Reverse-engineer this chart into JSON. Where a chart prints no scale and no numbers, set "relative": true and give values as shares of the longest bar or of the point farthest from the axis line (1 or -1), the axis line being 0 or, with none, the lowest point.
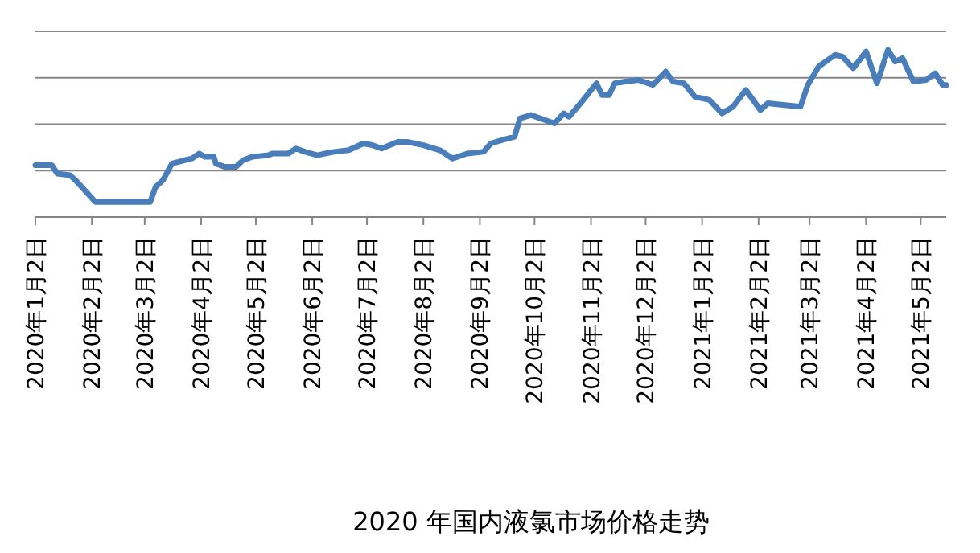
{
  "chart_data": {
    "type": "line",
    "title": "2020 年国内液氯市场价格走势",
    "relative": true,
    "grid": "y",
    "color": "#4a7ebb",
    "xlim": [
      "2020-01-02",
      "2021-05-16"
    ],
    "xticks": [
      {
        "value": "2020-01-02",
        "label": "2020年1月2日"
      },
      {
        "value": "2020-02-02",
        "label": "2020年2月2日"
      },
      {
        "value": "2020-03-02",
        "label": "2020年3月2日"
      },
      {
        "value": "2020-04-02",
        "label": "2020年4月2日"
      },
      {
        "value": "2020-05-02",
        "label": "2020年5月2日"
      },
      {
        "value": "2020-06-02",
        "label": "2020年6月2日"
      },
      {
        "value": "2020-07-02",
        "label": "2020年7月2日"
      },
      {
        "value": "2020-08-02",
        "label": "2020年8月2日"
      },
      {
        "value": "2020-09-02",
        "label": "2020年9月2日"
      },
      {
        "value": "2020-10-02",
        "label": "2020年10月2日"
      },
      {
        "value": "2020-11-02",
        "label": "2020年11月2日"
      },
      {
        "value": "2020-12-02",
        "label": "2020年12月2日"
      },
      {
        "value": "2021-01-02",
        "label": "2021年1月2日"
      },
      {
        "value": "2021-02-02",
        "label": "2021年2月2日"
      },
      {
        "value": "2021-03-02",
        "label": "2021年3月2日"
      },
      {
        "value": "2021-04-02",
        "label": "2021年4月2日"
      },
      {
        "value": "2021-05-02",
        "label": "2021年5月2日"
      }
    ],
    "x": [
      "2020-01-02",
      "2020-01-11",
      "2020-01-14",
      "2020-01-21",
      "2020-01-24",
      "2020-02-04",
      "2020-03-05",
      "2020-03-08",
      "2020-03-12",
      "2020-03-17",
      "2020-03-24",
      "2020-03-28",
      "2020-04-01",
      "2020-04-04",
      "2020-04-09",
      "2020-04-10",
      "2020-04-15",
      "2020-04-21",
      "2020-04-25",
      "2020-04-30",
      "2020-05-09",
      "2020-05-11",
      "2020-05-20",
      "2020-05-24",
      "2020-05-29",
      "2020-06-05",
      "2020-06-09",
      "2020-06-14",
      "2020-06-22",
      "2020-06-30",
      "2020-07-05",
      "2020-07-10",
      "2020-07-19",
      "2020-07-24",
      "2020-08-02",
      "2020-08-11",
      "2020-08-18",
      "2020-08-26",
      "2020-09-04",
      "2020-09-08",
      "2020-09-14",
      "2020-09-21",
      "2020-09-24",
      "2020-09-30",
      "2020-10-13",
      "2020-10-18",
      "2020-10-21",
      "2020-10-28",
      "2020-11-05",
      "2020-11-08",
      "2020-11-12",
      "2020-11-15",
      "2020-11-21",
      "2020-11-28",
      "2020-12-06",
      "2020-12-13",
      "2020-12-17",
      "2020-12-23",
      "2020-12-29",
      "2021-01-06",
      "2021-01-13",
      "2021-01-19",
      "2021-01-26",
      "2021-02-03",
      "2021-02-07",
      "2021-02-25",
      "2021-03-01",
      "2021-03-07",
      "2021-03-16",
      "2021-03-20",
      "2021-03-26",
      "2021-04-02",
      "2021-04-08",
      "2021-04-14",
      "2021-04-18",
      "2021-04-22",
      "2021-04-28",
      "2021-05-05",
      "2021-05-10",
      "2021-05-14",
      "2021-05-16"
    ],
    "values": [
      0.31,
      0.31,
      0.26,
      0.25,
      0.22,
      0.09,
      0.09,
      0.18,
      0.22,
      0.32,
      0.34,
      0.35,
      0.38,
      0.36,
      0.36,
      0.32,
      0.3,
      0.3,
      0.34,
      0.36,
      0.37,
      0.38,
      0.38,
      0.41,
      0.39,
      0.37,
      0.38,
      0.39,
      0.4,
      0.44,
      0.43,
      0.41,
      0.45,
      0.45,
      0.43,
      0.4,
      0.35,
      0.38,
      0.39,
      0.44,
      0.46,
      0.48,
      0.59,
      0.61,
      0.56,
      0.62,
      0.6,
      0.69,
      0.8,
      0.73,
      0.73,
      0.8,
      0.81,
      0.82,
      0.79,
      0.87,
      0.81,
      0.8,
      0.72,
      0.7,
      0.62,
      0.66,
      0.76,
      0.64,
      0.68,
      0.66,
      0.79,
      0.9,
      0.97,
      0.96,
      0.89,
      0.99,
      0.8,
      1,
      0.93,
      0.95,
      0.81,
      0.82,
      0.86,
      0.79,
      0.79
    ]
  }
}
